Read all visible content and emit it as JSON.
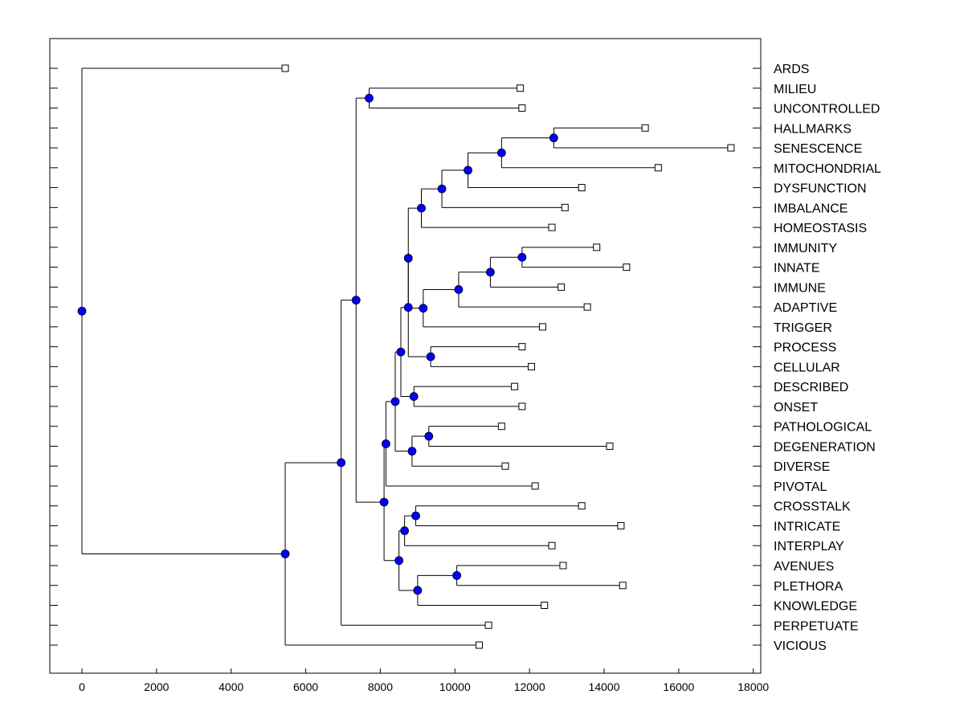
{
  "chart_data": {
    "type": "dendrogram",
    "orientation": "horizontal",
    "leaf_side": "right",
    "x_axis": {
      "ticks": [
        0,
        2000,
        4000,
        6000,
        8000,
        10000,
        12000,
        14000,
        16000,
        18000
      ],
      "tick_labels": [
        "0",
        "2000",
        "4000",
        "6000",
        "8000",
        "10000",
        "12000",
        "14000",
        "16000",
        "18000"
      ],
      "range": [
        -850,
        18850
      ]
    },
    "leaves": [
      {
        "label": "ARDS",
        "value": 5450
      },
      {
        "label": "MILIEU",
        "value": 11750
      },
      {
        "label": "UNCONTROLLED",
        "value": 11800
      },
      {
        "label": "HALLMARKS",
        "value": 15100
      },
      {
        "label": "SENESCENCE",
        "value": 17400
      },
      {
        "label": "MITOCHONDRIAL",
        "value": 15450
      },
      {
        "label": "DYSFUNCTION",
        "value": 13400
      },
      {
        "label": "IMBALANCE",
        "value": 12950
      },
      {
        "label": "HOMEOSTASIS",
        "value": 12600
      },
      {
        "label": "IMMUNITY",
        "value": 13800
      },
      {
        "label": "INNATE",
        "value": 14600
      },
      {
        "label": "IMMUNE",
        "value": 12850
      },
      {
        "label": "ADAPTIVE",
        "value": 13550
      },
      {
        "label": "TRIGGER",
        "value": 12350
      },
      {
        "label": "PROCESS",
        "value": 11800
      },
      {
        "label": "CELLULAR",
        "value": 12050
      },
      {
        "label": "DESCRIBED",
        "value": 11600
      },
      {
        "label": "ONSET",
        "value": 11800
      },
      {
        "label": "PATHOLOGICAL",
        "value": 11250
      },
      {
        "label": "DEGENERATION",
        "value": 14150
      },
      {
        "label": "DIVERSE",
        "value": 11350
      },
      {
        "label": "PIVOTAL",
        "value": 12150
      },
      {
        "label": "CROSSTALK",
        "value": 13400
      },
      {
        "label": "INTRICATE",
        "value": 14450
      },
      {
        "label": "INTERPLAY",
        "value": 12600
      },
      {
        "label": "AVENUES",
        "value": 12900
      },
      {
        "label": "PLETHORA",
        "value": 14500
      },
      {
        "label": "KNOWLEDGE",
        "value": 12400
      },
      {
        "label": "PERPETUATE",
        "value": 10900
      },
      {
        "label": "VICIOUS",
        "value": 10650
      }
    ],
    "merges": [
      {
        "value": 12650,
        "children": [
          "L3",
          "L4"
        ]
      },
      {
        "value": 11250,
        "children": [
          "M0",
          "L5"
        ]
      },
      {
        "value": 10350,
        "children": [
          "M1",
          "L6"
        ]
      },
      {
        "value": 9650,
        "children": [
          "M2",
          "L7"
        ]
      },
      {
        "value": 9100,
        "children": [
          "M3",
          "L8"
        ]
      },
      {
        "value": 11800,
        "children": [
          "L9",
          "L10"
        ]
      },
      {
        "value": 10950,
        "children": [
          "M5",
          "L11"
        ]
      },
      {
        "value": 10100,
        "children": [
          "M6",
          "L12"
        ]
      },
      {
        "value": 9150,
        "children": [
          "M7",
          "L13"
        ]
      },
      {
        "value": 8750,
        "children": [
          "M4",
          "M8"
        ]
      },
      {
        "value": 9350,
        "children": [
          "L14",
          "L15"
        ]
      },
      {
        "value": 8750,
        "children": [
          "M9",
          "M10"
        ]
      },
      {
        "value": 8900,
        "children": [
          "L16",
          "L17"
        ]
      },
      {
        "value": 8550,
        "children": [
          "M11",
          "M12"
        ]
      },
      {
        "value": 9300,
        "children": [
          "L18",
          "L19"
        ]
      },
      {
        "value": 8850,
        "children": [
          "M14",
          "L20"
        ]
      },
      {
        "value": 8400,
        "children": [
          "M13",
          "M15"
        ]
      },
      {
        "value": 8150,
        "children": [
          "M16",
          "L21"
        ]
      },
      {
        "value": 8950,
        "children": [
          "L22",
          "L23"
        ]
      },
      {
        "value": 8650,
        "children": [
          "M18",
          "L24"
        ]
      },
      {
        "value": 10050,
        "children": [
          "L25",
          "L26"
        ]
      },
      {
        "value": 9000,
        "children": [
          "M20",
          "L27"
        ]
      },
      {
        "value": 8500,
        "children": [
          "M19",
          "M21"
        ]
      },
      {
        "value": 8100,
        "children": [
          "M17",
          "M22"
        ]
      },
      {
        "value": 7700,
        "children": [
          "L1",
          "L2"
        ]
      },
      {
        "value": 7350,
        "children": [
          "M24",
          "M23"
        ]
      },
      {
        "value": 6950,
        "children": [
          "M25",
          "L28"
        ]
      },
      {
        "value": 5450,
        "children": [
          "M26",
          "L29"
        ]
      },
      {
        "value": 0,
        "children": [
          "L0",
          "M27"
        ]
      }
    ],
    "colors": {
      "node_fill": "#0000ff",
      "leaf_marker_fill": "#ffffff",
      "line": "#000000"
    }
  }
}
